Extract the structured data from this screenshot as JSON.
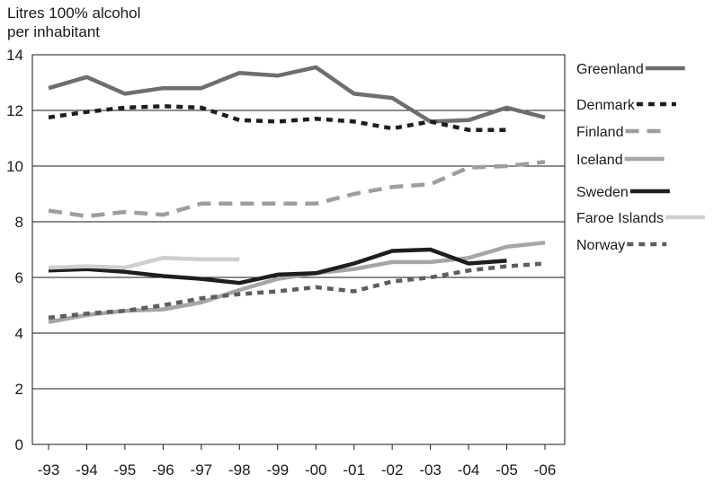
{
  "chart_data": {
    "type": "line",
    "ylabel_line1": "Litres 100% alcohol",
    "ylabel_line2": "per inhabitant",
    "xlabel": "",
    "ylim": [
      0,
      14
    ],
    "yticks": [
      0,
      2,
      4,
      6,
      8,
      10,
      12,
      14
    ],
    "categories": [
      "-93",
      "-94",
      "-95",
      "-96",
      "-97",
      "-98",
      "-99",
      "-00",
      "-01",
      "-02",
      "-03",
      "-04",
      "-05",
      "-06"
    ],
    "grid": "horizontal",
    "legend_position": "right",
    "series": [
      {
        "name": "Greenland",
        "color": "#6e6e6e",
        "dash": "solid",
        "values": [
          12.8,
          13.2,
          12.6,
          12.8,
          12.8,
          13.35,
          13.25,
          13.55,
          12.6,
          12.45,
          11.6,
          11.65,
          12.1,
          11.75
        ]
      },
      {
        "name": "Denmark",
        "color": "#1e1e1e",
        "dash": "dotted",
        "values": [
          11.75,
          11.95,
          12.1,
          12.15,
          12.1,
          11.65,
          11.6,
          11.7,
          11.6,
          11.35,
          11.6,
          11.3,
          11.3,
          null
        ]
      },
      {
        "name": "Finland",
        "color": "#9e9e9e",
        "dash": "dashed",
        "values": [
          8.4,
          8.2,
          8.35,
          8.25,
          8.65,
          8.65,
          8.65,
          8.65,
          9.0,
          9.25,
          9.35,
          9.95,
          10.0,
          10.15
        ]
      },
      {
        "name": "Iceland",
        "color": "#a6a6a6",
        "dash": "solid",
        "values": [
          4.4,
          4.65,
          4.8,
          4.85,
          5.1,
          5.55,
          5.95,
          6.15,
          6.3,
          6.55,
          6.55,
          6.7,
          7.1,
          7.25
        ]
      },
      {
        "name": "Sweden",
        "color": "#1e1e1e",
        "dash": "solid",
        "values": [
          6.25,
          6.3,
          6.2,
          6.05,
          5.95,
          5.8,
          6.1,
          6.15,
          6.5,
          6.95,
          7.0,
          6.5,
          6.6,
          null
        ]
      },
      {
        "name": "Faroe Islands",
        "color": "#cfcfcf",
        "dash": "solid",
        "values": [
          6.35,
          6.4,
          6.35,
          6.7,
          6.65,
          6.65,
          null,
          null,
          null,
          null,
          null,
          null,
          null,
          null
        ]
      },
      {
        "name": "Norway",
        "color": "#5e5e5e",
        "dash": "dotted",
        "values": [
          4.55,
          4.7,
          4.8,
          5.0,
          5.25,
          5.4,
          5.5,
          5.65,
          5.5,
          5.85,
          6.0,
          6.25,
          6.4,
          6.5
        ]
      }
    ]
  }
}
